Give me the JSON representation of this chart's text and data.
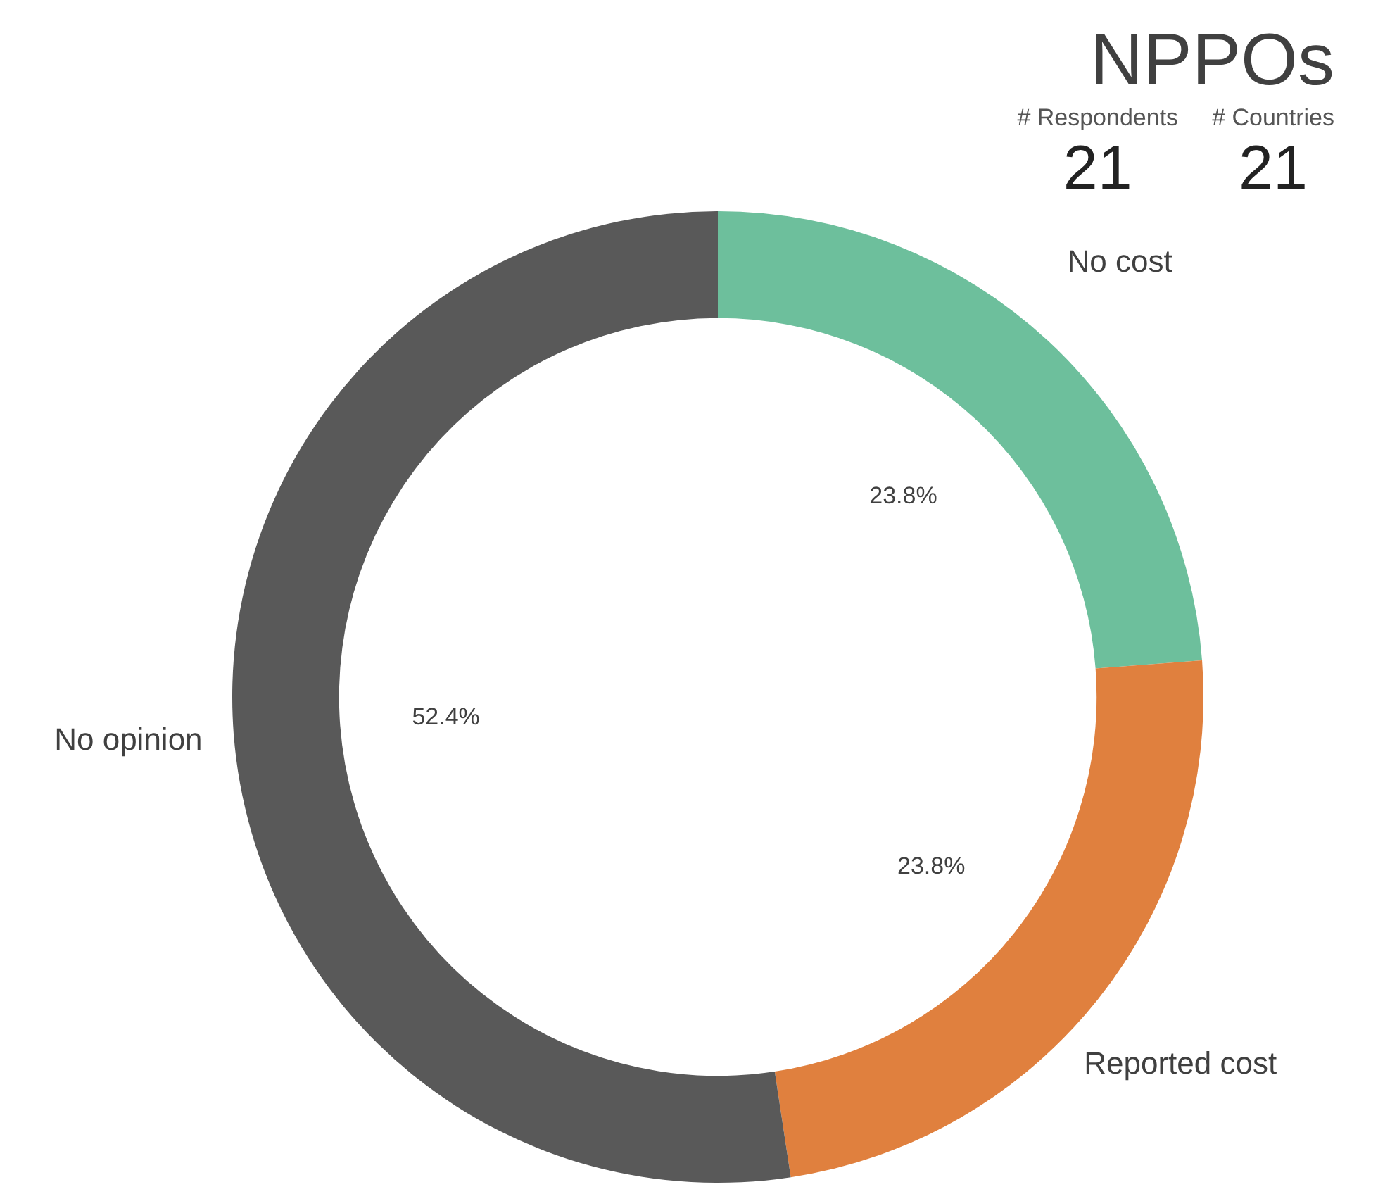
{
  "chart_data": {
    "type": "donut",
    "title": "NPPOs",
    "annotations": [
      "# Respondents",
      "21",
      "# Countries",
      "21"
    ],
    "categories": [
      "No cost",
      "Reported cost",
      "No opinion"
    ],
    "values": [
      23.8,
      23.8,
      52.4
    ],
    "value_labels": [
      "23.8%",
      "23.8%",
      "52.4%"
    ],
    "colors": [
      "#6dbf9c",
      "#e0803e",
      "#595959"
    ],
    "legend": false
  }
}
